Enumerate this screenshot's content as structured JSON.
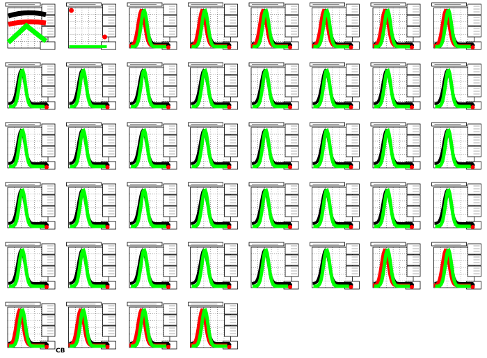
{
  "footer": {
    "label": "CB"
  }
}
